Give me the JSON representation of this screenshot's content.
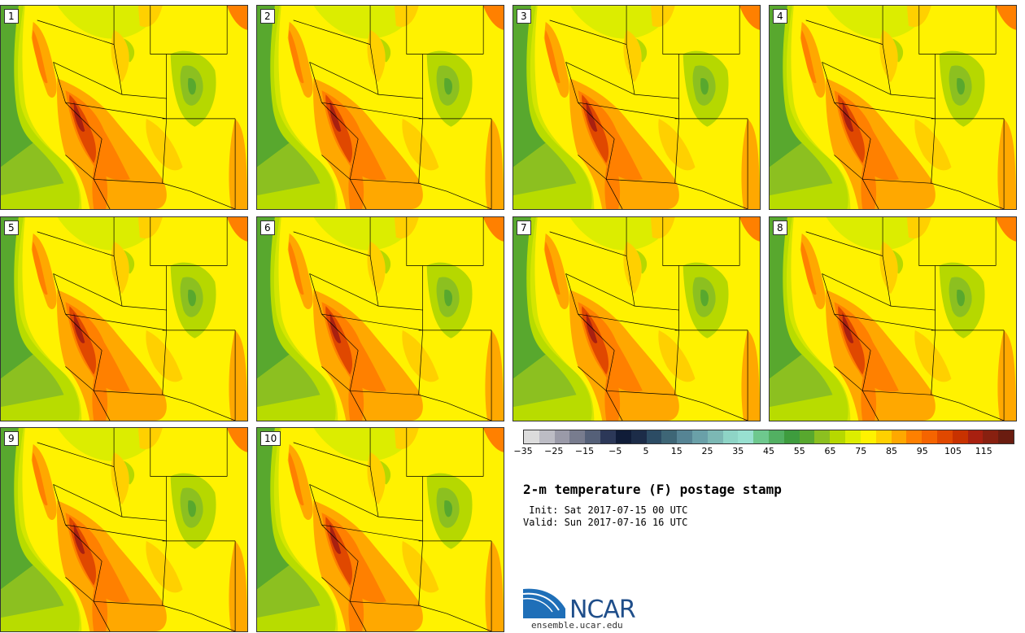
{
  "members": [
    "1",
    "2",
    "3",
    "4",
    "5",
    "6",
    "7",
    "8",
    "9",
    "10"
  ],
  "colorbar": {
    "tick_labels": [
      "−35",
      "−25",
      "−15",
      "−5",
      "5",
      "15",
      "25",
      "35",
      "45",
      "55",
      "65",
      "75",
      "85",
      "95",
      "105",
      "115"
    ],
    "colors": [
      "#dcdcdc",
      "#bcbcc4",
      "#9a9aa8",
      "#787c8e",
      "#556078",
      "#2c3858",
      "#101c38",
      "#1c2c48",
      "#2c4c64",
      "#3e6676",
      "#568494",
      "#6aa0a8",
      "#7cb8b4",
      "#8ed4c6",
      "#98e0d0",
      "#6ec88e",
      "#52b062",
      "#3e9c3e",
      "#58a82e",
      "#8cc020",
      "#b6d800",
      "#dced00",
      "#fff200",
      "#ffd000",
      "#ffa800",
      "#ff8000",
      "#f56400",
      "#e04800",
      "#c83200",
      "#a82010",
      "#882010",
      "#6a1c10"
    ]
  },
  "title": "2-m temperature (F) postage stamp",
  "init": " Init: Sat 2017-07-15 00 UTC",
  "valid": "Valid: Sun 2017-07-16 16 UTC",
  "logo": {
    "text": "NCAR",
    "url": "ensemble.ucar.edu"
  }
}
